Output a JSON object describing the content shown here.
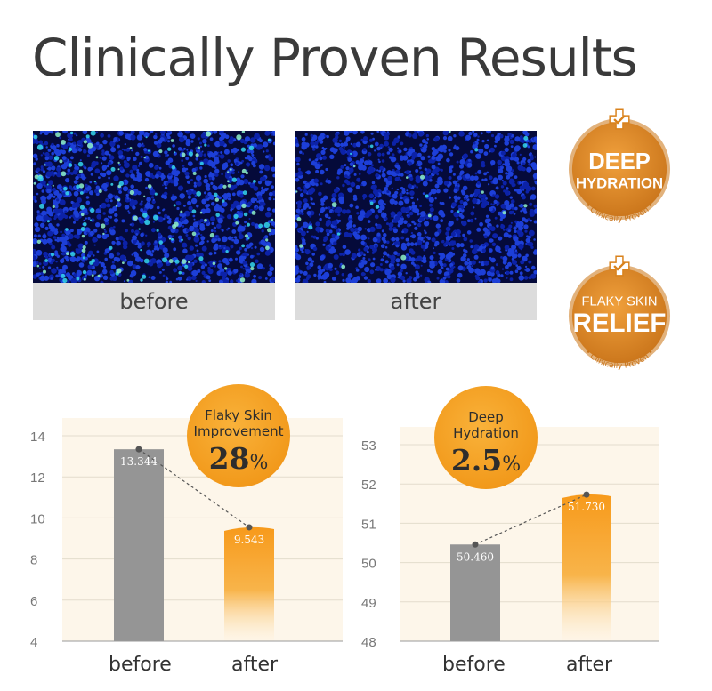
{
  "title": "Clinically Proven Results",
  "images": [
    {
      "label": "before",
      "description": "skin scan heatmap with many bright patches"
    },
    {
      "label": "after",
      "description": "skin scan heatmap with few bright patches"
    }
  ],
  "badges": [
    {
      "line1": "DEEP",
      "line2": "HYDRATION",
      "sub": "• Clinically Proven •"
    },
    {
      "line1": "FLAKY SKIN",
      "line2": "RELIEF",
      "sub": "• Clinically Proven •"
    }
  ],
  "colors": {
    "accent": "#f29a1c",
    "badge": "#d9821c",
    "grey_bar": "#959595",
    "grid_bg": "#fdf6ea"
  },
  "chart_data": [
    {
      "type": "bar",
      "categories": [
        "before",
        "after"
      ],
      "values": [
        13.344,
        9.543
      ],
      "value_labels": [
        "13.344",
        "9.543"
      ],
      "yticks": [
        "14",
        "12",
        "10",
        "8",
        "6",
        "4"
      ],
      "ylim": [
        4,
        14
      ],
      "callout": {
        "text1": "Flaky Skin",
        "text2": "Improvement",
        "value": "28",
        "unit": "%"
      }
    },
    {
      "type": "bar",
      "categories": [
        "before",
        "after"
      ],
      "values": [
        50.46,
        51.73
      ],
      "value_labels": [
        "50.460",
        "51.730"
      ],
      "yticks": [
        "53",
        "52",
        "51",
        "50",
        "49",
        "48"
      ],
      "ylim": [
        48,
        53
      ],
      "callout": {
        "text1": "Deep",
        "text2": "Hydration",
        "value": "2.5",
        "unit": "%"
      }
    }
  ]
}
